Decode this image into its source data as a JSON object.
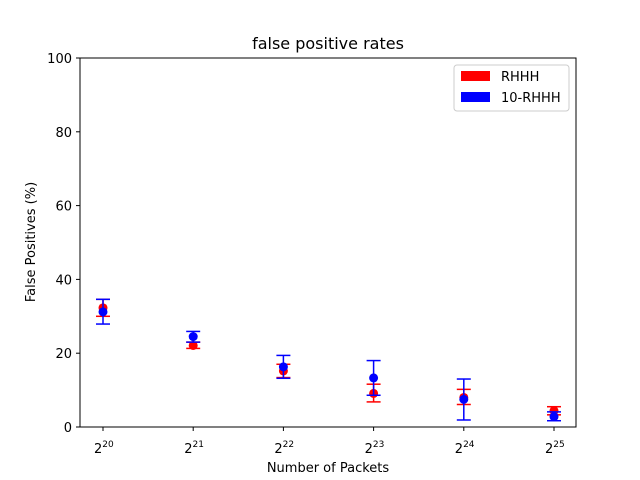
{
  "chart_data": {
    "type": "scatter",
    "title": "false positive rates",
    "xlabel": "Number of Packets",
    "ylabel": "False Positives (%)",
    "categories": [
      {
        "base": "2",
        "exp": "20"
      },
      {
        "base": "2",
        "exp": "21"
      },
      {
        "base": "2",
        "exp": "22"
      },
      {
        "base": "2",
        "exp": "23"
      },
      {
        "base": "2",
        "exp": "24"
      },
      {
        "base": "2",
        "exp": "25"
      }
    ],
    "ylim": [
      0,
      100
    ],
    "yticks": [
      0,
      20,
      40,
      60,
      80,
      100
    ],
    "legend_position": "top-right",
    "grid": false,
    "series": [
      {
        "name": "RHHH",
        "color": "#ff0000",
        "values": [
          32.3,
          22.1,
          15.2,
          9.1,
          8.0,
          4.4
        ],
        "err_low": [
          30.0,
          21.3,
          13.4,
          6.8,
          6.1,
          3.3
        ],
        "err_high": [
          34.6,
          23.0,
          17.0,
          11.6,
          10.2,
          5.5
        ]
      },
      {
        "name": "10-RHHH",
        "color": "#0000ff",
        "values": [
          31.2,
          24.5,
          16.3,
          13.3,
          7.5,
          2.8
        ],
        "err_low": [
          27.9,
          23.0,
          13.2,
          8.6,
          1.9,
          1.7
        ],
        "err_high": [
          34.6,
          25.9,
          19.4,
          18.0,
          13.0,
          4.1
        ]
      }
    ]
  }
}
